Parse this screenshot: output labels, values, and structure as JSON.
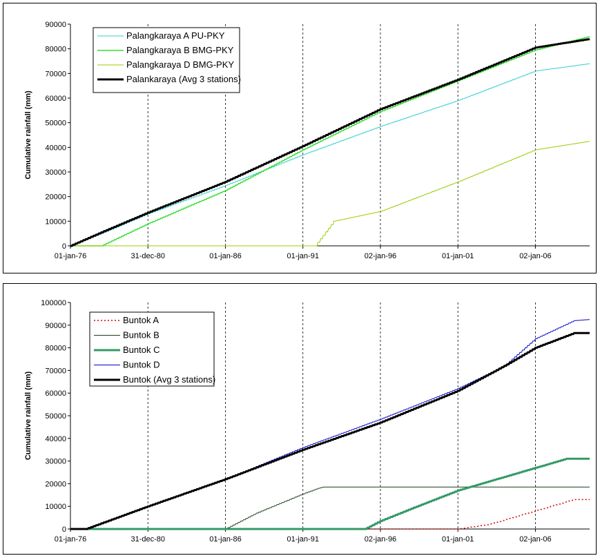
{
  "chart_data": [
    {
      "type": "line",
      "ylabel": "Cumulative rainfall (mm)",
      "xlabel": "",
      "x_ticks": [
        "01-jan-76",
        "31-dec-80",
        "01-jan-86",
        "01-jan-91",
        "02-jan-96",
        "01-jan-01",
        "02-jan-06"
      ],
      "x_tick_years": [
        1976,
        1981,
        1986,
        1991,
        1996,
        2001,
        2006
      ],
      "xlim": [
        1976,
        2009.5
      ],
      "ylim": [
        0,
        90000
      ],
      "y_ticks": [
        0,
        10000,
        20000,
        30000,
        40000,
        50000,
        60000,
        70000,
        80000,
        90000
      ],
      "legend_position": "top-left",
      "grid": "vertical dashed",
      "series": [
        {
          "name": "Palangkaraya A PU-PKY",
          "color": "#33cccc",
          "width": 1,
          "dash": "",
          "x": [
            1976,
            1978,
            1981,
            1986,
            1991,
            1996,
            2001,
            2006,
            2009.5
          ],
          "y": [
            0,
            5000,
            13000,
            24500,
            37000,
            48500,
            59000,
            71000,
            74000
          ]
        },
        {
          "name": "Palangkaraya B BMG-PKY",
          "color": "#33dd33",
          "width": 1.5,
          "dash": "",
          "x": [
            1976,
            1978,
            1979,
            1981,
            1986,
            1991,
            1996,
            2001,
            2006,
            2009.5
          ],
          "y": [
            0,
            0,
            3000,
            9000,
            22500,
            39000,
            54500,
            67000,
            79500,
            85000
          ]
        },
        {
          "name": "Palangkaraya D BMG-PKY",
          "color": "#99cc00",
          "width": 1,
          "dash": "",
          "x": [
            1976,
            1990,
            1991.8,
            1993,
            1996,
            2001,
            2006,
            2009.5
          ],
          "y": [
            0,
            0,
            0,
            10000,
            14000,
            26000,
            39000,
            42500
          ]
        },
        {
          "name": "Palankaraya (Avg 3 stations)",
          "color": "#000000",
          "width": 3,
          "dash": "",
          "x": [
            1976,
            1978,
            1981,
            1986,
            1991,
            1996,
            2001,
            2006,
            2009.5
          ],
          "y": [
            0,
            5500,
            13500,
            26000,
            40500,
            55500,
            67500,
            80500,
            84000
          ]
        }
      ]
    },
    {
      "type": "line",
      "ylabel": "Cumulative rainfall (mm)",
      "xlabel": "",
      "x_ticks": [
        "01-jan-76",
        "31-dec-80",
        "01-jan-86",
        "01-jan-91",
        "02-jan-96",
        "01-jan-01",
        "02-jan-06"
      ],
      "x_tick_years": [
        1976,
        1981,
        1986,
        1991,
        1996,
        2001,
        2006
      ],
      "xlim": [
        1976,
        2009.5
      ],
      "ylim": [
        0,
        100000
      ],
      "y_ticks": [
        0,
        10000,
        20000,
        30000,
        40000,
        50000,
        60000,
        70000,
        80000,
        90000,
        100000
      ],
      "legend_position": "top-left",
      "grid": "vertical dashed",
      "series": [
        {
          "name": "Buntok A",
          "color": "#cc0000",
          "width": 1.5,
          "dash": "2,3",
          "x": [
            1976,
            2001,
            2003,
            2006,
            2008.5,
            2009.5
          ],
          "y": [
            0,
            0,
            2000,
            8000,
            13000,
            13000
          ]
        },
        {
          "name": "Buntok B",
          "color": "#1a3a1a",
          "width": 1,
          "dash": "",
          "x": [
            1976,
            1986,
            1988,
            1991,
            1992,
            1992.3,
            2009.5
          ],
          "y": [
            0,
            0,
            7000,
            15500,
            18000,
            18500,
            18500
          ]
        },
        {
          "name": "Buntok C",
          "color": "#339966",
          "width": 3,
          "dash": "",
          "x": [
            1976,
            1995,
            1996,
            1998,
            2001,
            2003,
            2006,
            2008,
            2009.5
          ],
          "y": [
            0,
            0,
            3500,
            9000,
            17000,
            21000,
            27000,
            31000,
            31000
          ]
        },
        {
          "name": "Buntok D",
          "color": "#0000cc",
          "width": 1,
          "dash": "",
          "x": [
            1976,
            1977,
            1981,
            1986,
            1991,
            1996,
            2001,
            2004,
            2006,
            2008.5,
            2009.5
          ],
          "y": [
            0,
            0,
            10000,
            22000,
            36000,
            48500,
            62000,
            72000,
            84000,
            92000,
            92500
          ]
        },
        {
          "name": "Buntok (Avg 3 stations)",
          "color": "#000000",
          "width": 3,
          "dash": "",
          "x": [
            1976,
            1977,
            1981,
            1986,
            1991,
            1996,
            2001,
            2004,
            2006,
            2008.5,
            2009.5
          ],
          "y": [
            0,
            0,
            10000,
            22000,
            35000,
            47000,
            61000,
            72000,
            80000,
            86500,
            86500
          ]
        }
      ]
    }
  ]
}
